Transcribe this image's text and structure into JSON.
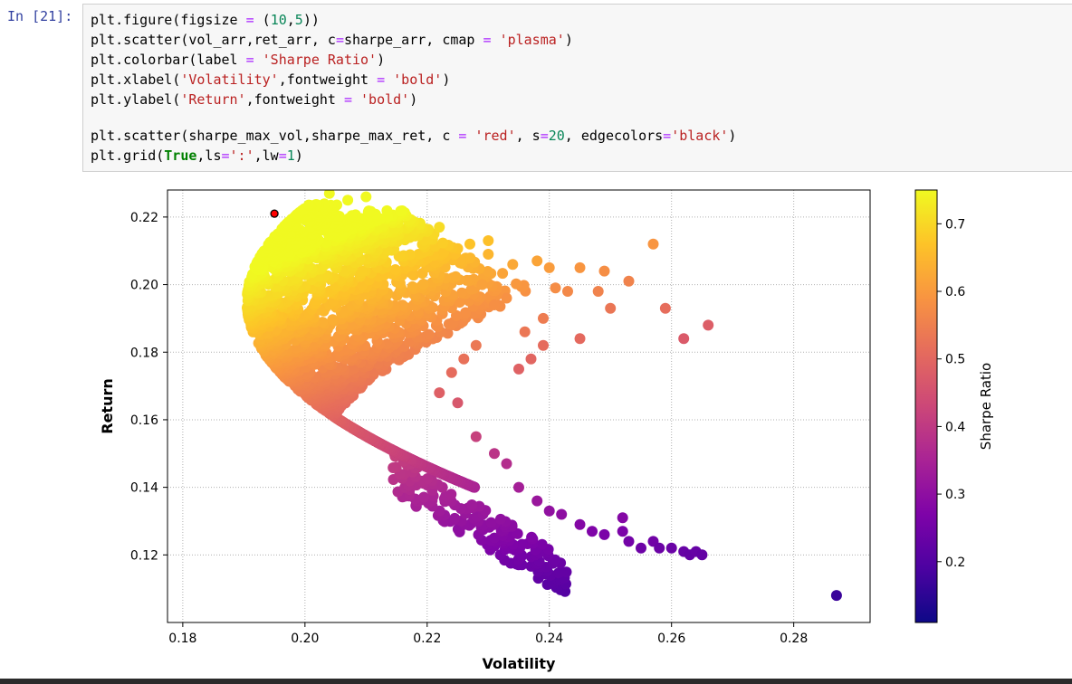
{
  "cell": {
    "prompt": "In [21]:",
    "code_lines": [
      [
        {
          "t": "plt.figure(figsize ",
          "c": ""
        },
        {
          "t": "=",
          "c": "o"
        },
        {
          "t": " (",
          "c": ""
        },
        {
          "t": "10",
          "c": "n"
        },
        {
          "t": ",",
          "c": ""
        },
        {
          "t": "5",
          "c": "n"
        },
        {
          "t": "))",
          "c": ""
        }
      ],
      [
        {
          "t": "plt.scatter(vol_arr,ret_arr, c",
          "c": ""
        },
        {
          "t": "=",
          "c": "o"
        },
        {
          "t": "sharpe_arr, cmap ",
          "c": ""
        },
        {
          "t": "=",
          "c": "o"
        },
        {
          "t": " ",
          "c": ""
        },
        {
          "t": "'plasma'",
          "c": "s"
        },
        {
          "t": ")",
          "c": ""
        }
      ],
      [
        {
          "t": "plt.colorbar(label ",
          "c": ""
        },
        {
          "t": "=",
          "c": "o"
        },
        {
          "t": " ",
          "c": ""
        },
        {
          "t": "'Sharpe Ratio'",
          "c": "s"
        },
        {
          "t": ")",
          "c": ""
        }
      ],
      [
        {
          "t": "plt.xlabel(",
          "c": ""
        },
        {
          "t": "'Volatility'",
          "c": "s"
        },
        {
          "t": ",fontweight ",
          "c": ""
        },
        {
          "t": "=",
          "c": "o"
        },
        {
          "t": " ",
          "c": ""
        },
        {
          "t": "'bold'",
          "c": "s"
        },
        {
          "t": ")",
          "c": ""
        }
      ],
      [
        {
          "t": "plt.ylabel(",
          "c": ""
        },
        {
          "t": "'Return'",
          "c": "s"
        },
        {
          "t": ",fontweight ",
          "c": ""
        },
        {
          "t": "=",
          "c": "o"
        },
        {
          "t": " ",
          "c": ""
        },
        {
          "t": "'bold'",
          "c": "s"
        },
        {
          "t": ")",
          "c": ""
        }
      ],
      [],
      [
        {
          "t": "plt.scatter(sharpe_max_vol,sharpe_max_ret, c ",
          "c": ""
        },
        {
          "t": "=",
          "c": "o"
        },
        {
          "t": " ",
          "c": ""
        },
        {
          "t": "'red'",
          "c": "s"
        },
        {
          "t": ", s",
          "c": ""
        },
        {
          "t": "=",
          "c": "o"
        },
        {
          "t": "20",
          "c": "n"
        },
        {
          "t": ", edgecolors",
          "c": ""
        },
        {
          "t": "=",
          "c": "o"
        },
        {
          "t": "'black'",
          "c": "s"
        },
        {
          "t": ")",
          "c": ""
        }
      ],
      [
        {
          "t": "plt.grid(",
          "c": ""
        },
        {
          "t": "True",
          "c": "k"
        },
        {
          "t": ",ls",
          "c": ""
        },
        {
          "t": "=",
          "c": "o"
        },
        {
          "t": "':'",
          "c": "s"
        },
        {
          "t": ",lw",
          "c": ""
        },
        {
          "t": "=",
          "c": "o"
        },
        {
          "t": "1",
          "c": "n"
        },
        {
          "t": ")",
          "c": ""
        }
      ]
    ]
  },
  "chart_data": {
    "type": "scatter",
    "xlabel": "Volatility",
    "ylabel": "Return",
    "colorbar_label": "Sharpe Ratio",
    "colormap": "plasma",
    "grid": true,
    "xlim": [
      0.1775,
      0.2925
    ],
    "ylim": [
      0.1,
      0.228
    ],
    "xticks": [
      "0.18",
      "0.20",
      "0.22",
      "0.24",
      "0.26",
      "0.28"
    ],
    "yticks": [
      "0.12",
      "0.14",
      "0.16",
      "0.18",
      "0.20",
      "0.22"
    ],
    "colorbar_range": [
      0.11,
      0.75
    ],
    "colorbar_ticks": [
      "0.2",
      "0.3",
      "0.4",
      "0.5",
      "0.6",
      "0.7"
    ],
    "max_sharpe_point": {
      "x": 0.195,
      "y": 0.221,
      "color": "#ff0000",
      "edgecolor": "#000000"
    },
    "outlier_points": [
      [
        0.21,
        0.226
      ],
      [
        0.204,
        0.227
      ],
      [
        0.207,
        0.225
      ],
      [
        0.222,
        0.217
      ],
      [
        0.227,
        0.212
      ],
      [
        0.23,
        0.213
      ],
      [
        0.23,
        0.209
      ],
      [
        0.234,
        0.206
      ],
      [
        0.238,
        0.207
      ],
      [
        0.24,
        0.205
      ],
      [
        0.245,
        0.205
      ],
      [
        0.249,
        0.204
      ],
      [
        0.253,
        0.201
      ],
      [
        0.257,
        0.212
      ],
      [
        0.259,
        0.193
      ],
      [
        0.262,
        0.184
      ],
      [
        0.266,
        0.188
      ],
      [
        0.25,
        0.193
      ],
      [
        0.248,
        0.198
      ],
      [
        0.245,
        0.184
      ],
      [
        0.243,
        0.198
      ],
      [
        0.241,
        0.199
      ],
      [
        0.239,
        0.19
      ],
      [
        0.239,
        0.182
      ],
      [
        0.237,
        0.178
      ],
      [
        0.236,
        0.186
      ],
      [
        0.235,
        0.175
      ],
      [
        0.233,
        0.196
      ],
      [
        0.231,
        0.194
      ],
      [
        0.229,
        0.2
      ],
      [
        0.228,
        0.182
      ],
      [
        0.226,
        0.178
      ],
      [
        0.224,
        0.174
      ],
      [
        0.222,
        0.168
      ],
      [
        0.225,
        0.165
      ],
      [
        0.228,
        0.155
      ],
      [
        0.231,
        0.15
      ],
      [
        0.233,
        0.147
      ],
      [
        0.235,
        0.14
      ],
      [
        0.238,
        0.136
      ],
      [
        0.24,
        0.133
      ],
      [
        0.242,
        0.132
      ],
      [
        0.245,
        0.129
      ],
      [
        0.247,
        0.127
      ],
      [
        0.249,
        0.126
      ],
      [
        0.252,
        0.131
      ],
      [
        0.252,
        0.127
      ],
      [
        0.253,
        0.124
      ],
      [
        0.255,
        0.122
      ],
      [
        0.257,
        0.124
      ],
      [
        0.258,
        0.122
      ],
      [
        0.26,
        0.122
      ],
      [
        0.262,
        0.121
      ],
      [
        0.263,
        0.12
      ],
      [
        0.264,
        0.121
      ],
      [
        0.265,
        0.12
      ],
      [
        0.287,
        0.108
      ]
    ],
    "colorbar_tick_values": [
      0.2,
      0.3,
      0.4,
      0.5,
      0.6,
      0.7
    ]
  },
  "colors": {
    "code_background": "#f7f7f7",
    "prompt": "#303f9f",
    "string": "#ba2121",
    "number": "#098658",
    "keyword": "#008000"
  }
}
